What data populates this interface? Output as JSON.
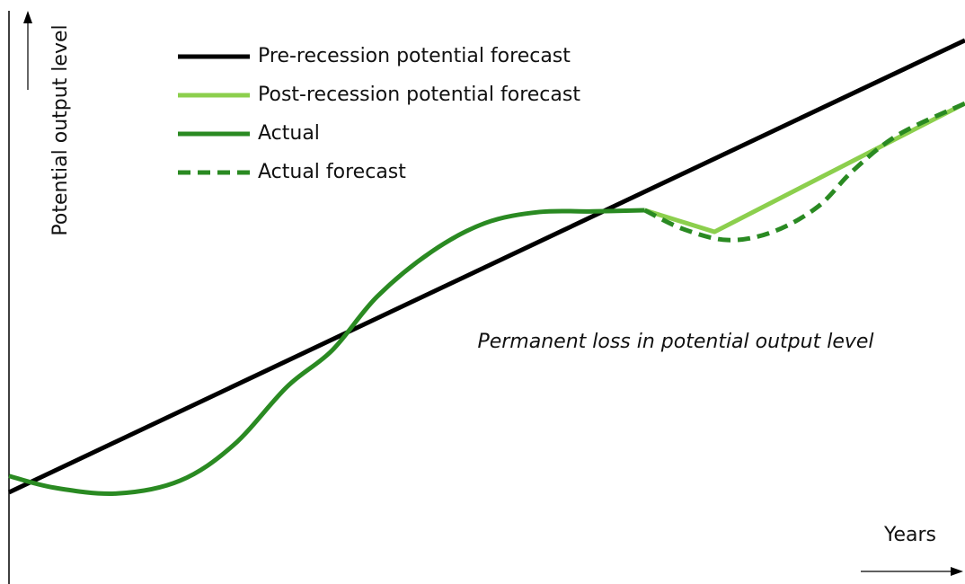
{
  "chart_data": {
    "type": "line",
    "y_label": "Potential output level",
    "x_label": "Years",
    "annotation": "Permanent loss in potential output level",
    "xlim": [
      0,
      100
    ],
    "ylim": [
      0,
      100
    ],
    "legend": "upper left",
    "series": [
      {
        "name": "Pre-recession potential forecast",
        "color": "#000000",
        "style": "solid",
        "x": [
          0,
          100
        ],
        "values": [
          15.7,
          93.1
        ]
      },
      {
        "name": "Post-recession potential forecast",
        "color": "#8ccf4d",
        "style": "solid",
        "x": [
          66.5,
          73.8,
          100
        ],
        "values": [
          64.0,
          60.3,
          82.3
        ]
      },
      {
        "name": "Actual",
        "color": "#2a8a22",
        "style": "solid",
        "x": [
          0,
          4.7,
          11.3,
          17.9,
          23.5,
          29.1,
          33.8,
          38.5,
          44.2,
          49.8,
          55.5,
          61.1,
          66.5
        ],
        "values": [
          18.5,
          16.5,
          15.5,
          17.7,
          23.8,
          33.8,
          40.0,
          49.2,
          56.9,
          61.8,
          63.7,
          63.8,
          64.0
        ]
      },
      {
        "name": "Actual forecast",
        "color": "#2a8a22",
        "style": "dashed",
        "x": [
          66.5,
          70.5,
          75.2,
          79.9,
          84.6,
          88.3,
          93.0,
          100
        ],
        "values": [
          64.0,
          60.8,
          58.9,
          60.3,
          64.6,
          70.8,
          76.9,
          82.3
        ]
      }
    ]
  }
}
